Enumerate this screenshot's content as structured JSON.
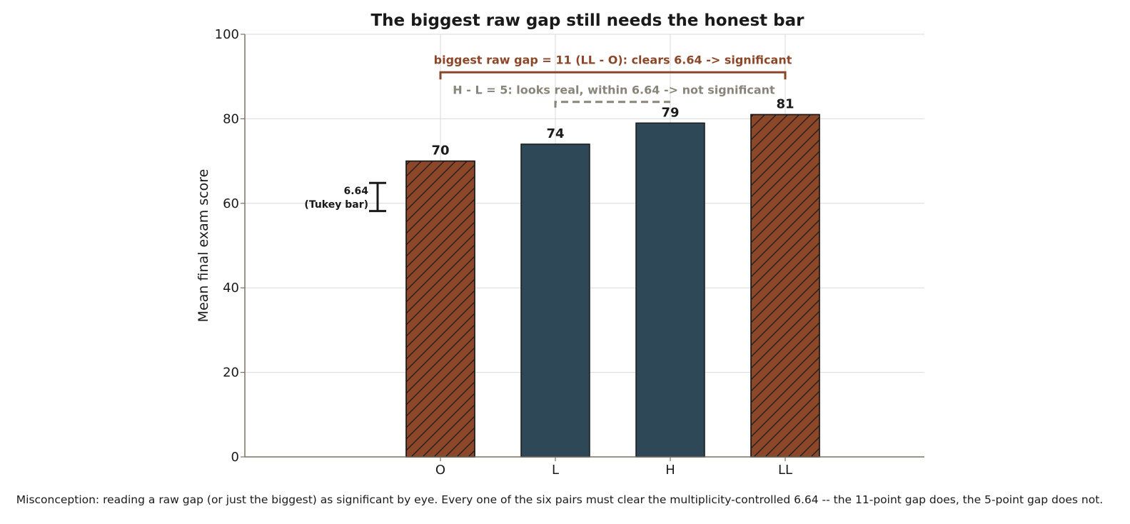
{
  "chart_data": {
    "type": "bar",
    "title": "The biggest raw gap still needs the honest bar",
    "ylabel": "Mean final exam score",
    "xlabel": "",
    "ylim": [
      0,
      100
    ],
    "yticks": [
      0,
      20,
      40,
      60,
      80,
      100
    ],
    "grid": true,
    "categories": [
      "O",
      "L",
      "H",
      "LL"
    ],
    "values": [
      70,
      74,
      79,
      81
    ],
    "bar_colors": [
      "#8b4728",
      "#2f4858",
      "#2f4858",
      "#8b4728"
    ],
    "hatched": [
      true,
      false,
      false,
      true
    ],
    "annotations": {
      "big_gap": {
        "text": "biggest raw gap = 11 (LL - O): clears 6.64 -> significant",
        "from": "O",
        "to": "LL",
        "y": 91,
        "color": "#8b4728"
      },
      "small_gap": {
        "text": "H - L = 5: looks real, within 6.64 -> not significant",
        "from": "L",
        "to": "H",
        "y": 84,
        "color": "#8a857a"
      },
      "tukey_bar": {
        "value_line": "6.64",
        "label_line": "(Tukey bar)",
        "center": 61.5,
        "length": 6.64
      }
    },
    "caption": "Misconception: reading a raw gap (or just the biggest) as significant by eye. Every one of the six pairs must clear the multiplicity-controlled 6.64 -- the 11-point gap does, the 5-point gap does not."
  }
}
